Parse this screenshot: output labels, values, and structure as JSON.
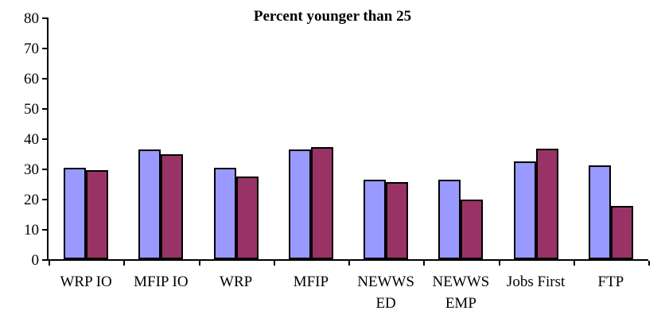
{
  "chart_data": {
    "type": "bar",
    "title": "Percent younger than 25",
    "categories": [
      "WRP IO",
      "MFIP IO",
      "WRP",
      "MFIP",
      "NEWWS ED",
      "NEWWS EMP",
      "Jobs First",
      "FTP"
    ],
    "category_label_lines": [
      [
        "WRP IO"
      ],
      [
        "MFIP IO"
      ],
      [
        "WRP"
      ],
      [
        "MFIP"
      ],
      [
        "NEWWS",
        "ED"
      ],
      [
        "NEWWS",
        "EMP"
      ],
      [
        "Jobs First"
      ],
      [
        "FTP"
      ]
    ],
    "series": [
      {
        "name": "",
        "color": "#9999FF",
        "values": [
          30.2,
          36.3,
          30.2,
          36.3,
          26.2,
          26.2,
          32.4,
          31.0
        ]
      },
      {
        "name": "",
        "color": "#993366",
        "values": [
          29.5,
          34.8,
          27.5,
          37.2,
          25.6,
          19.7,
          36.5,
          17.7
        ]
      }
    ],
    "xlabel": "",
    "ylabel": "",
    "ylim": [
      0,
      80
    ],
    "ytick_step": 10,
    "ytick_labels": [
      "0",
      "10",
      "20",
      "30",
      "40",
      "50",
      "60",
      "70",
      "80"
    ],
    "grid": false,
    "legend": false,
    "axis_color": "#000000",
    "bar_border_color": "#000000",
    "background_color": "#FFFFFF"
  }
}
